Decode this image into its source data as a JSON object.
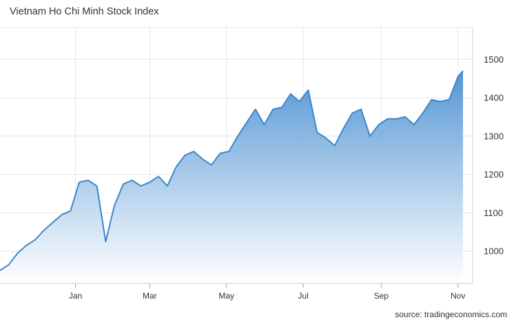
{
  "chart_data": {
    "type": "area",
    "title": "Vietnam Ho Chi Minh Stock Index",
    "source": "source: tradingeconomics.com",
    "xlabel": "",
    "ylabel": "",
    "ylim": [
      916,
      1583
    ],
    "yticks": [
      1000,
      1100,
      1200,
      1300,
      1400,
      1500
    ],
    "xticks": [
      "Jan",
      "Mar",
      "May",
      "Jul",
      "Sep",
      "Nov"
    ],
    "grid": true,
    "legend": "none",
    "colors": {
      "line": "#3b86c8",
      "fill_top": "#4a90d2",
      "fill_bottom": "#ffffff",
      "grid": "#e4e4e4"
    },
    "x": [
      "2020-11-02",
      "2020-11-09",
      "2020-11-16",
      "2020-11-23",
      "2020-11-30",
      "2020-12-07",
      "2020-12-14",
      "2020-12-21",
      "2020-12-28",
      "2021-01-04",
      "2021-01-11",
      "2021-01-18",
      "2021-01-25",
      "2021-02-01",
      "2021-02-08",
      "2021-02-15",
      "2021-02-22",
      "2021-03-01",
      "2021-03-08",
      "2021-03-15",
      "2021-03-22",
      "2021-03-29",
      "2021-04-05",
      "2021-04-12",
      "2021-04-19",
      "2021-04-26",
      "2021-05-03",
      "2021-05-10",
      "2021-05-17",
      "2021-05-24",
      "2021-05-31",
      "2021-06-07",
      "2021-06-14",
      "2021-06-21",
      "2021-06-28",
      "2021-07-05",
      "2021-07-12",
      "2021-07-19",
      "2021-07-26",
      "2021-08-02",
      "2021-08-09",
      "2021-08-16",
      "2021-08-23",
      "2021-08-30",
      "2021-09-06",
      "2021-09-13",
      "2021-09-20",
      "2021-09-27",
      "2021-10-04",
      "2021-10-11",
      "2021-10-18",
      "2021-10-25",
      "2021-11-01",
      "2021-11-05"
    ],
    "series": [
      {
        "values": [
          950,
          965,
          995,
          1015,
          1030,
          1055,
          1075,
          1095,
          1105,
          1180,
          1185,
          1170,
          1025,
          1120,
          1175,
          1185,
          1170,
          1180,
          1195,
          1170,
          1220,
          1250,
          1260,
          1240,
          1225,
          1255,
          1260,
          1300,
          1335,
          1370,
          1330,
          1370,
          1375,
          1410,
          1390,
          1420,
          1310,
          1295,
          1275,
          1320,
          1360,
          1370,
          1300,
          1330,
          1345,
          1345,
          1350,
          1330,
          1360,
          1395,
          1390,
          1395,
          1455,
          1470
        ]
      }
    ]
  }
}
